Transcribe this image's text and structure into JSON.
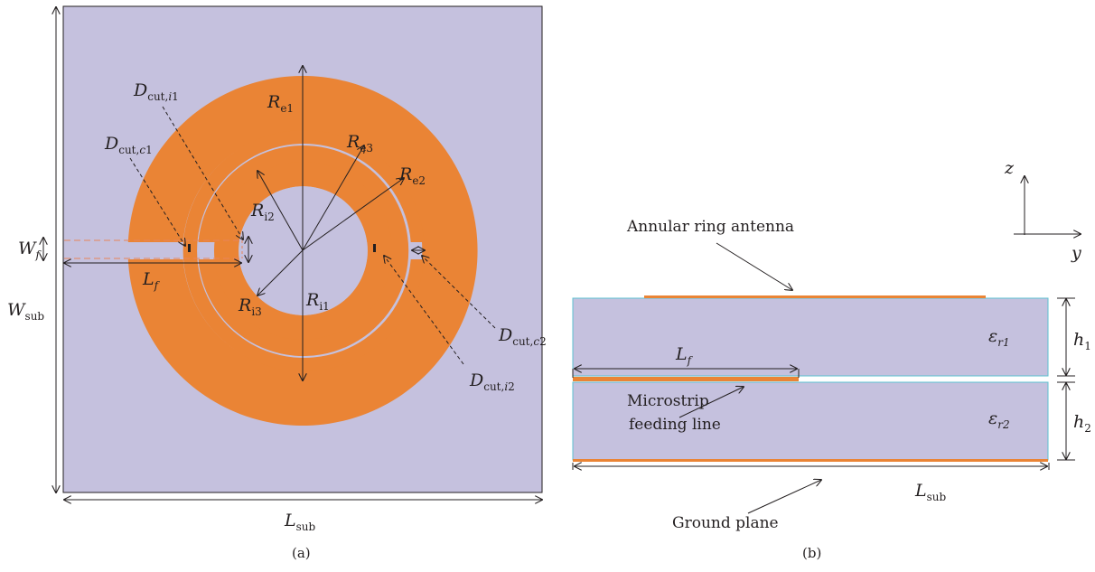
{
  "colors": {
    "substrate": "#c5c1de",
    "copper": "#ea8435",
    "outline": "#231f20",
    "edge": "#5cc1d0"
  },
  "panel_a": {
    "caption": "(a)",
    "labels": {
      "Re1": [
        "R",
        "e1"
      ],
      "Re2": [
        "R",
        "e2"
      ],
      "Re3": [
        "R",
        "e3"
      ],
      "Ri1": [
        "R",
        "i1"
      ],
      "Ri2": [
        "R",
        "i2"
      ],
      "Ri3": [
        "R",
        "i3"
      ],
      "Dcut_i1": [
        "D",
        "cut,",
        "i",
        "1"
      ],
      "Dcut_c1": [
        "D",
        "cut,",
        "c",
        "1"
      ],
      "Dcut_c2": [
        "D",
        "cut,",
        "c",
        "2"
      ],
      "Dcut_i2": [
        "D",
        "cut,",
        "i",
        "2"
      ],
      "Wf": [
        "W",
        "f"
      ],
      "Lf": [
        "L",
        "f"
      ],
      "Wsub": [
        "W",
        "sub"
      ],
      "Lsub": [
        "L",
        "sub"
      ]
    }
  },
  "panel_b": {
    "caption": "(b)",
    "annular_label": "Annular ring antenna",
    "feed_label_1": "Microstrip",
    "feed_label_2": "feeding line",
    "ground_label": "Ground plane",
    "labels": {
      "Lf": [
        "L",
        "f"
      ],
      "Lsub": [
        "L",
        "sub"
      ],
      "er1": [
        "ε",
        "r1"
      ],
      "er2": [
        "ε",
        "r2"
      ],
      "h1": [
        "h",
        "1"
      ],
      "h2": [
        "h",
        "2"
      ],
      "z": "z",
      "y": "y"
    }
  }
}
